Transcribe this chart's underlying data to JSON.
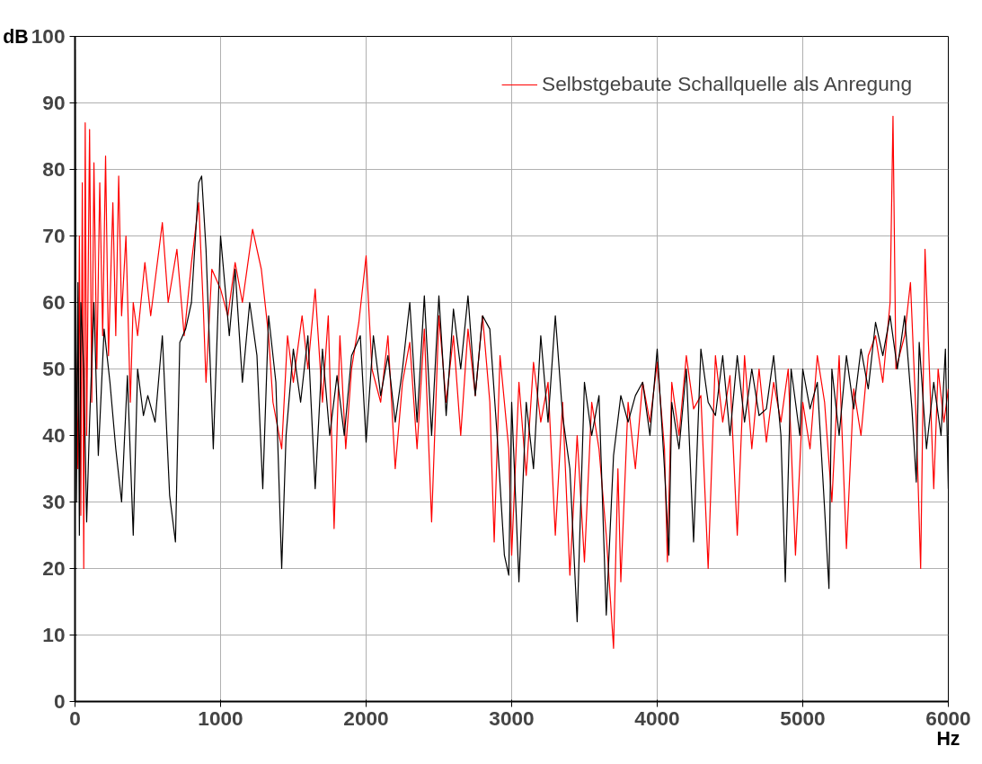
{
  "chart_data": {
    "type": "line",
    "xlabel": "Hz",
    "ylabel": "dB",
    "xlim": [
      0,
      6000
    ],
    "ylim": [
      0,
      100
    ],
    "xticks": [
      0,
      1000,
      2000,
      3000,
      4000,
      5000,
      6000
    ],
    "yticks": [
      0,
      10,
      20,
      30,
      40,
      50,
      60,
      70,
      80,
      90,
      100
    ],
    "grid": true,
    "legend": "top right",
    "line_style": "solid",
    "marker": "none",
    "series": [
      {
        "name": "Selbstgebaute Schallquelle als Anregung",
        "color": "#ff0000",
        "x": [
          0,
          20,
          30,
          40,
          50,
          60,
          70,
          80,
          100,
          115,
          130,
          150,
          170,
          190,
          210,
          230,
          260,
          280,
          300,
          320,
          350,
          380,
          400,
          430,
          480,
          520,
          560,
          600,
          640,
          700,
          750,
          800,
          850,
          880,
          900,
          940,
          1000,
          1050,
          1100,
          1150,
          1220,
          1280,
          1330,
          1360,
          1420,
          1460,
          1500,
          1560,
          1600,
          1650,
          1700,
          1740,
          1780,
          1820,
          1860,
          1900,
          1950,
          2000,
          2040,
          2100,
          2150,
          2200,
          2250,
          2300,
          2350,
          2400,
          2450,
          2500,
          2550,
          2600,
          2650,
          2700,
          2750,
          2800,
          2850,
          2880,
          2920,
          2980,
          3000,
          3050,
          3100,
          3150,
          3200,
          3250,
          3300,
          3350,
          3400,
          3450,
          3500,
          3550,
          3600,
          3650,
          3700,
          3730,
          3750,
          3800,
          3850,
          3900,
          3950,
          4000,
          4050,
          4070,
          4100,
          4150,
          4200,
          4250,
          4300,
          4350,
          4400,
          4450,
          4500,
          4550,
          4600,
          4650,
          4700,
          4750,
          4800,
          4850,
          4900,
          4950,
          5000,
          5050,
          5100,
          5150,
          5200,
          5250,
          5300,
          5350,
          5400,
          5450,
          5500,
          5550,
          5600,
          5620,
          5640,
          5700,
          5740,
          5780,
          5810,
          5840,
          5870,
          5900,
          5930,
          5970,
          6000
        ],
        "values": [
          60,
          35,
          70,
          28,
          78,
          20,
          87,
          40,
          86,
          45,
          81,
          50,
          78,
          55,
          82,
          52,
          75,
          55,
          79,
          58,
          70,
          45,
          60,
          55,
          66,
          58,
          65,
          72,
          60,
          68,
          55,
          66,
          75,
          60,
          48,
          65,
          62,
          58,
          66,
          60,
          71,
          65,
          55,
          45,
          38,
          55,
          48,
          58,
          50,
          62,
          45,
          58,
          26,
          55,
          38,
          50,
          57,
          67,
          50,
          45,
          55,
          35,
          48,
          54,
          38,
          56,
          27,
          58,
          45,
          55,
          40,
          56,
          46,
          58,
          45,
          24,
          52,
          38,
          22,
          48,
          34,
          51,
          42,
          48,
          25,
          45,
          19,
          40,
          21,
          45,
          38,
          25,
          8,
          35,
          18,
          45,
          35,
          48,
          42,
          51,
          38,
          21,
          48,
          40,
          52,
          44,
          46,
          20,
          52,
          42,
          49,
          25,
          52,
          38,
          50,
          39,
          48,
          42,
          50,
          22,
          45,
          38,
          52,
          45,
          30,
          52,
          23,
          47,
          40,
          52,
          55,
          48,
          60,
          88,
          50,
          55,
          63,
          42,
          20,
          68,
          50,
          32,
          50,
          42,
          47
        ]
      },
      {
        "color": "#000000",
        "x": [
          0,
          10,
          20,
          30,
          40,
          60,
          80,
          100,
          130,
          160,
          200,
          240,
          280,
          320,
          360,
          400,
          430,
          470,
          500,
          550,
          600,
          650,
          690,
          720,
          760,
          800,
          850,
          870,
          900,
          950,
          1000,
          1060,
          1100,
          1150,
          1200,
          1250,
          1290,
          1330,
          1380,
          1420,
          1450,
          1500,
          1550,
          1600,
          1650,
          1700,
          1750,
          1800,
          1850,
          1900,
          1960,
          2000,
          2050,
          2100,
          2150,
          2200,
          2250,
          2300,
          2350,
          2400,
          2450,
          2500,
          2550,
          2600,
          2650,
          2700,
          2750,
          2800,
          2850,
          2900,
          2950,
          2980,
          3000,
          3050,
          3100,
          3150,
          3200,
          3250,
          3300,
          3350,
          3400,
          3450,
          3500,
          3550,
          3600,
          3650,
          3700,
          3750,
          3800,
          3850,
          3900,
          3950,
          4000,
          4050,
          4080,
          4100,
          4150,
          4200,
          4250,
          4300,
          4350,
          4400,
          4450,
          4500,
          4550,
          4600,
          4650,
          4700,
          4750,
          4800,
          4850,
          4880,
          4920,
          4980,
          5000,
          5050,
          5100,
          5150,
          5180,
          5200,
          5250,
          5300,
          5350,
          5400,
          5450,
          5500,
          5550,
          5600,
          5650,
          5700,
          5750,
          5780,
          5800,
          5850,
          5900,
          5950,
          5980,
          6000
        ],
        "values": [
          98,
          30,
          63,
          25,
          60,
          50,
          27,
          42,
          60,
          37,
          56,
          48,
          38,
          30,
          49,
          25,
          50,
          43,
          46,
          42,
          55,
          31,
          24,
          54,
          56,
          60,
          78,
          79,
          68,
          38,
          70,
          55,
          65,
          48,
          60,
          52,
          32,
          58,
          48,
          20,
          40,
          53,
          45,
          55,
          32,
          53,
          40,
          49,
          40,
          52,
          55,
          39,
          55,
          46,
          52,
          42,
          50,
          60,
          42,
          61,
          40,
          61,
          43,
          59,
          50,
          61,
          46,
          58,
          56,
          40,
          22,
          19,
          45,
          18,
          45,
          35,
          55,
          42,
          58,
          43,
          35,
          12,
          48,
          40,
          46,
          13,
          37,
          46,
          42,
          46,
          48,
          40,
          53,
          35,
          22,
          45,
          38,
          50,
          24,
          53,
          45,
          43,
          52,
          40,
          52,
          42,
          50,
          43,
          44,
          52,
          40,
          18,
          50,
          40,
          50,
          44,
          48,
          29,
          17,
          50,
          40,
          52,
          44,
          53,
          47,
          57,
          52,
          58,
          50,
          58,
          44,
          33,
          54,
          38,
          48,
          40,
          53,
          32
        ]
      }
    ]
  }
}
